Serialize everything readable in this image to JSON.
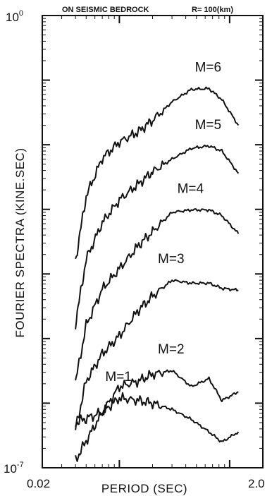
{
  "chart_data": {
    "type": "line",
    "title": "ON SEISMIC BEDROCK",
    "subtitle": "R= 100(km)",
    "xlabel": "PERIOD (SEC)",
    "ylabel": "FOURIER SPECTRA (KINE.SEC)",
    "x_scale": "log",
    "y_scale": "log",
    "xlim": [
      0.02,
      2.0
    ],
    "ylim": [
      1e-07,
      1
    ],
    "x_tick_labels": [
      "0.02",
      "2.0"
    ],
    "y_tick_labels": [
      {
        "base": "10",
        "exp": "0"
      },
      {
        "base": "10",
        "exp": "-7"
      }
    ],
    "grid": false,
    "series": [
      {
        "name": "M=6",
        "x": [
          0.04,
          0.05,
          0.07,
          0.1,
          0.15,
          0.2,
          0.3,
          0.45,
          0.65,
          0.85,
          1.2
        ],
        "y": [
          0.00016,
          0.0016,
          0.0062,
          0.011,
          0.016,
          0.024,
          0.046,
          0.072,
          0.074,
          0.05,
          0.02
        ]
      },
      {
        "name": "M=5",
        "x": [
          0.04,
          0.05,
          0.07,
          0.1,
          0.15,
          0.2,
          0.3,
          0.45,
          0.65,
          0.85,
          1.2
        ],
        "y": [
          1.7e-05,
          0.00017,
          0.00062,
          0.0014,
          0.0025,
          0.0038,
          0.006,
          0.0088,
          0.0096,
          0.008,
          0.0036
        ]
      },
      {
        "name": "M=4",
        "x": [
          0.04,
          0.05,
          0.07,
          0.1,
          0.15,
          0.2,
          0.3,
          0.45,
          0.65,
          0.85,
          1.2
        ],
        "y": [
          2.1e-06,
          1.6e-05,
          5.8e-05,
          0.00012,
          0.00028,
          0.00045,
          0.0009,
          0.00098,
          0.00098,
          0.0008,
          0.00042
        ]
      },
      {
        "name": "M=3",
        "x": [
          0.04,
          0.05,
          0.07,
          0.1,
          0.15,
          0.2,
          0.3,
          0.45,
          0.65,
          0.85,
          1.2
        ],
        "y": [
          3.9e-07,
          2.2e-06,
          5.8e-06,
          1.1e-05,
          2.8e-05,
          4.5e-05,
          8e-05,
          7.2e-05,
          7.2e-05,
          6e-05,
          5.6e-05
        ]
      },
      {
        "name": "M=2",
        "x": [
          0.04,
          0.05,
          0.07,
          0.1,
          0.15,
          0.2,
          0.3,
          0.45,
          0.65,
          0.85,
          1.2
        ],
        "y": [
          1.3e-07,
          2.6e-07,
          7.2e-07,
          1.8e-06,
          2.2e-06,
          2.8e-06,
          3.2e-06,
          1.8e-06,
          2.4e-06,
          1.1e-06,
          1.5e-06
        ]
      },
      {
        "name": "M=1",
        "x": [
          0.04,
          0.05,
          0.07,
          0.1,
          0.15,
          0.2,
          0.3,
          0.45,
          0.65,
          0.85,
          1.2
        ],
        "y": [
          5e-07,
          5.8e-07,
          7.2e-07,
          1.2e-06,
          1.1e-06,
          1e-06,
          8e-07,
          5.6e-07,
          3.6e-07,
          2.5e-07,
          3.6e-07
        ]
      }
    ]
  }
}
